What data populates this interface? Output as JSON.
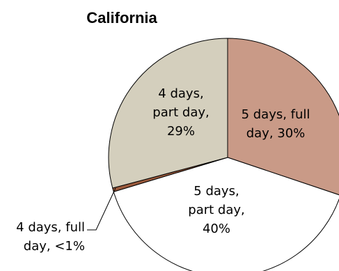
{
  "chart_data": {
    "type": "pie",
    "title": "California",
    "slices": [
      {
        "label_lines": [
          "5 days, full",
          "day, 30%"
        ],
        "value": 30,
        "color": "#c99a87"
      },
      {
        "label_lines": [
          "5 days,",
          "part day,",
          "40%"
        ],
        "value": 40,
        "color": "#ffffff"
      },
      {
        "label_lines": [
          "4 days, full",
          "day, <1%"
        ],
        "value": 0.5,
        "color": "#9b5a3c"
      },
      {
        "label_lines": [
          "4 days,",
          "part day,",
          "29%"
        ],
        "value": 29,
        "color": "#d4cfbd"
      }
    ]
  }
}
